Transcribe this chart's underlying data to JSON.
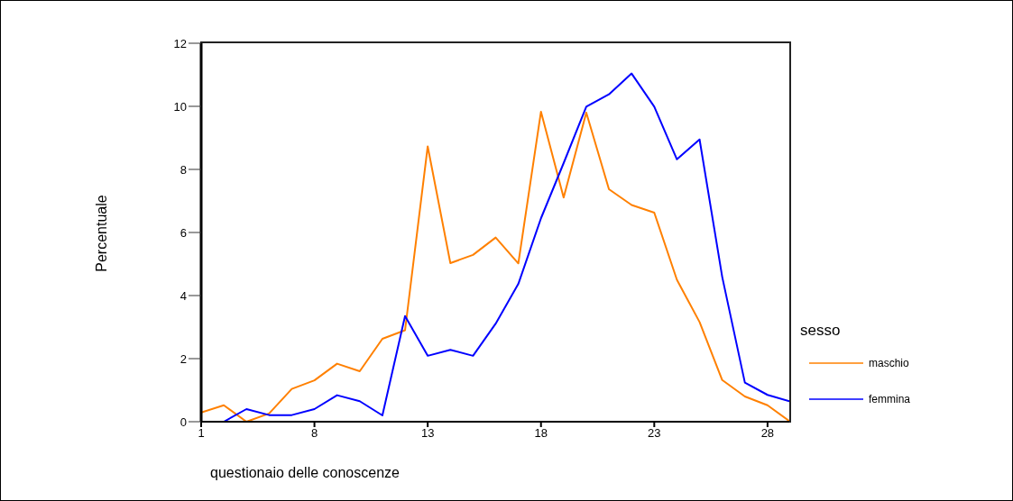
{
  "chart_data": {
    "type": "line",
    "xlabel": "questionaio delle conoscenze",
    "ylabel": "Percentuale",
    "legend_title": "sesso",
    "categories": [
      "1",
      null,
      null,
      null,
      null,
      "8",
      null,
      null,
      null,
      null,
      "13",
      null,
      null,
      null,
      null,
      "18",
      null,
      null,
      null,
      null,
      "23",
      null,
      null,
      null,
      null,
      "28",
      null
    ],
    "series": [
      {
        "name": "maschio",
        "color": "#ff8000",
        "values": [
          0.29,
          0.52,
          0,
          0.26,
          1.04,
          1.31,
          1.84,
          1.6,
          2.63,
          2.9,
          8.73,
          5.03,
          5.29,
          5.84,
          5.02,
          9.83,
          7.11,
          9.8,
          7.37,
          6.87,
          6.63,
          4.5,
          3.16,
          1.32,
          0.8,
          0.52,
          0
        ]
      },
      {
        "name": "femmina",
        "color": "#0000ff",
        "values": [
          0,
          0,
          0.4,
          0.21,
          0.21,
          0.4,
          0.84,
          0.65,
          0.2,
          3.35,
          2.09,
          2.28,
          2.09,
          3.11,
          4.37,
          6.45,
          8.2,
          9.99,
          10.38,
          11.04,
          9.99,
          8.32,
          8.95,
          4.59,
          1.24,
          0.85,
          0.64
        ]
      }
    ],
    "ylim": [
      0,
      12
    ],
    "yticks": [
      0,
      2,
      4,
      6,
      8,
      10,
      12
    ],
    "legend": "right",
    "marker": "none",
    "line_style": "solid"
  }
}
